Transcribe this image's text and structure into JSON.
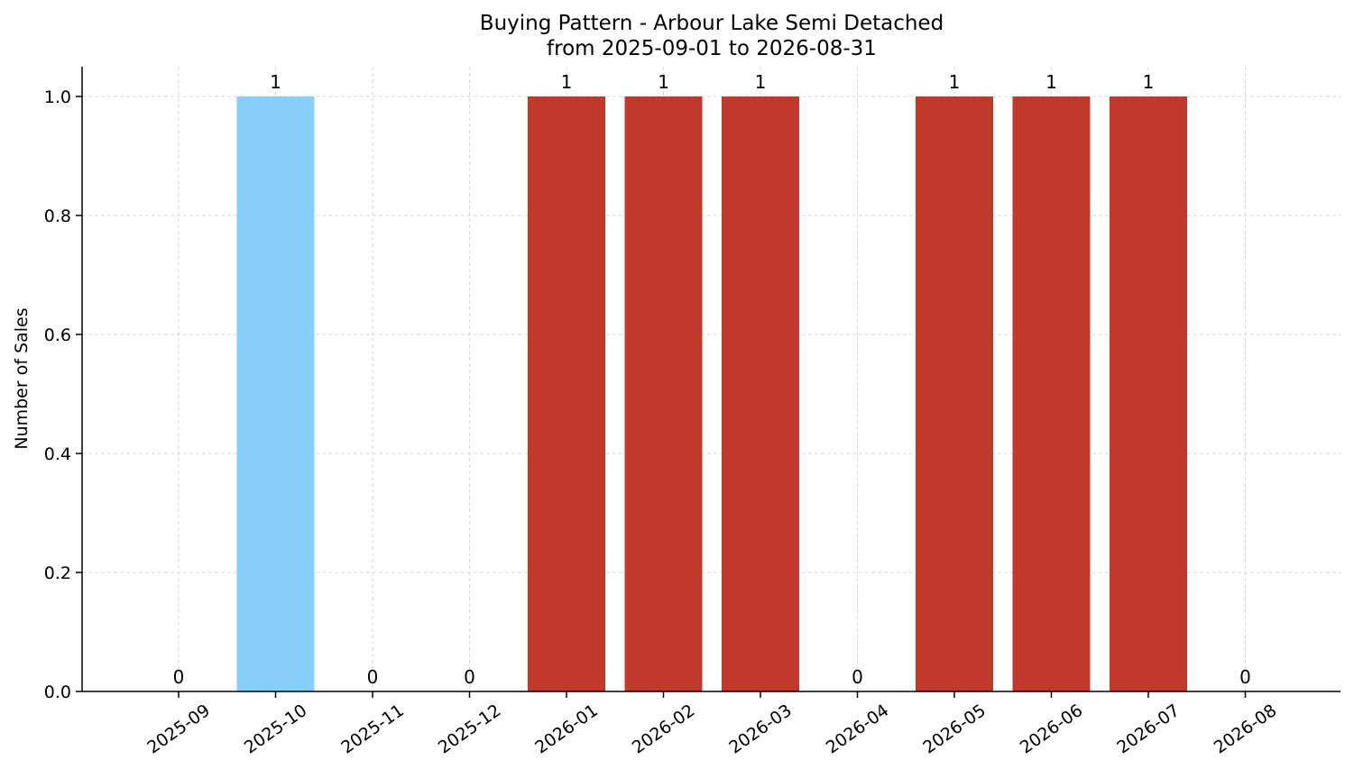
{
  "chart_data": {
    "type": "bar",
    "title_line1": "Buying Pattern - Arbour Lake Semi Detached",
    "title_line2": "from 2025-09-01 to 2026-08-31",
    "xlabel": "",
    "ylabel": "Number of Sales",
    "categories": [
      "2025-09",
      "2025-10",
      "2025-11",
      "2025-12",
      "2026-01",
      "2026-02",
      "2026-03",
      "2026-04",
      "2026-05",
      "2026-06",
      "2026-07",
      "2026-08"
    ],
    "values": [
      0,
      1,
      0,
      0,
      1,
      1,
      1,
      0,
      1,
      1,
      1,
      0
    ],
    "data_labels": [
      "0",
      "1",
      "0",
      "0",
      "1",
      "1",
      "1",
      "0",
      "1",
      "1",
      "1",
      "0"
    ],
    "bar_colors": [
      "#c0392b",
      "#87cefa",
      "#c0392b",
      "#c0392b",
      "#c0392b",
      "#c0392b",
      "#c0392b",
      "#c0392b",
      "#c0392b",
      "#c0392b",
      "#c0392b",
      "#c0392b"
    ],
    "ylim": [
      0,
      1.05
    ],
    "yticks": [
      0.0,
      0.2,
      0.4,
      0.6,
      0.8,
      1.0
    ],
    "ytick_labels": [
      "0.0",
      "0.2",
      "0.4",
      "0.6",
      "0.8",
      "1.0"
    ],
    "grid": true,
    "legend": "none"
  }
}
